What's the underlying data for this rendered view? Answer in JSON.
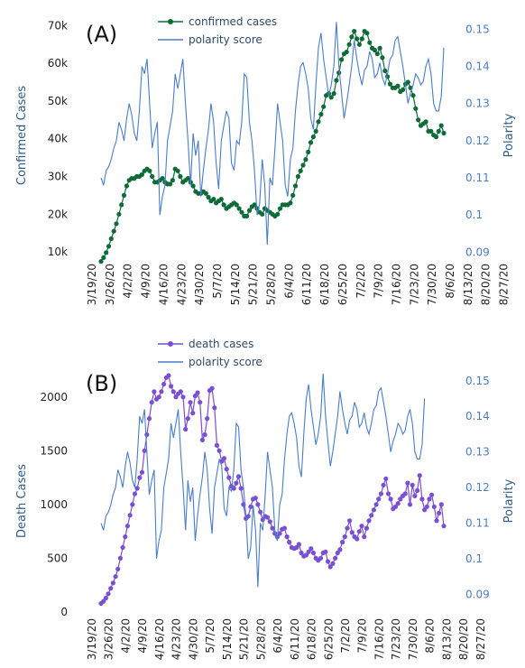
{
  "colors": {
    "confirmed": "#0d6b37",
    "death": "#7b4fd1",
    "polarity": "#4a7cc9",
    "axis_text": "#222222",
    "left_label": "#2e5c8a",
    "right_label": "#2e5c8a"
  },
  "chart_data": [
    {
      "type": "line",
      "panel_label": "(A)",
      "ylabel": "Confirmed Cases",
      "y2label": "Polarity",
      "ylim": [
        5000,
        72000
      ],
      "y2lim": [
        0.085,
        0.153
      ],
      "yticks": [
        10000,
        20000,
        30000,
        40000,
        50000,
        60000,
        70000
      ],
      "ytick_labels": [
        "10k",
        "20k",
        "30k",
        "40k",
        "50k",
        "60k",
        "70k"
      ],
      "y2ticks": [
        0.09,
        0.1,
        0.11,
        0.12,
        0.13,
        0.14,
        0.15
      ],
      "y2tick_labels": [
        "0.09",
        "0.1",
        "0.11",
        "0.12",
        "0.13",
        "0.14",
        "0.15"
      ],
      "xtick_labels": [
        "3/19/20",
        "3/26/20",
        "4/2/20",
        "4/9/20",
        "4/16/20",
        "4/23/20",
        "4/30/20",
        "5/7/20",
        "5/14/20",
        "5/21/20",
        "5/28/20",
        "6/4/20",
        "6/11/20",
        "6/18/20",
        "6/25/20",
        "7/2/20",
        "7/9/20",
        "7/16/20",
        "7/23/20",
        "7/30/20",
        "8/6/20",
        "8/13/20",
        "8/20/20",
        "8/27/20"
      ],
      "legend": "top-center",
      "series": [
        {
          "name": "confirmed cases",
          "marker": "circle",
          "start_date": "3/19/20",
          "values": [
            7500,
            8500,
            9800,
            11500,
            13500,
            15500,
            17500,
            20000,
            22500,
            25000,
            27500,
            29000,
            29500,
            29500,
            30000,
            30000,
            30500,
            31500,
            32000,
            31500,
            30000,
            28500,
            28500,
            29000,
            29500,
            28500,
            28000,
            28000,
            29000,
            32000,
            31500,
            30000,
            28500,
            29000,
            29500,
            28500,
            27500,
            26000,
            25500,
            25500,
            26000,
            25500,
            24500,
            23500,
            24000,
            23000,
            23500,
            24000,
            22500,
            21500,
            22000,
            22500,
            23000,
            22500,
            21500,
            20500,
            19500,
            19500,
            21000,
            22000,
            22500,
            21500,
            20500,
            20000,
            21500,
            21000,
            20500,
            20000,
            19500,
            20000,
            21500,
            22500,
            22500,
            22500,
            23000,
            25000,
            27500,
            30000,
            31500,
            33000,
            34500,
            36500,
            39000,
            40500,
            42000,
            44500,
            46500,
            48500,
            51500,
            52000,
            51000,
            52000,
            55500,
            57500,
            61000,
            62500,
            63000,
            65000,
            67000,
            68500,
            66500,
            65000,
            66500,
            68500,
            68000,
            65500,
            64000,
            63500,
            62500,
            64000,
            61500,
            58000,
            56500,
            54500,
            53500,
            53500,
            54000,
            52500,
            53000,
            54500,
            55000,
            53500,
            51500,
            48000,
            45000,
            43500,
            44000,
            44500,
            42000,
            42000,
            41000,
            40500,
            42000,
            43500,
            41500
          ]
        },
        {
          "name": "polarity score",
          "marker": "none",
          "start_date": "3/19/20",
          "values": [
            0.11,
            0.108,
            0.112,
            0.113,
            0.115,
            0.118,
            0.12,
            0.125,
            0.123,
            0.12,
            0.126,
            0.13,
            0.127,
            0.122,
            0.12,
            0.128,
            0.14,
            0.138,
            0.142,
            0.13,
            0.118,
            0.122,
            0.125,
            0.1,
            0.105,
            0.108,
            0.12,
            0.124,
            0.128,
            0.138,
            0.134,
            0.138,
            0.142,
            0.13,
            0.12,
            0.108,
            0.122,
            0.116,
            0.12,
            0.105,
            0.112,
            0.118,
            0.123,
            0.13,
            0.125,
            0.114,
            0.107,
            0.12,
            0.124,
            0.128,
            0.126,
            0.114,
            0.112,
            0.12,
            0.119,
            0.125,
            0.138,
            0.137,
            0.125,
            0.12,
            0.112,
            0.1,
            0.103,
            0.115,
            0.108,
            0.092,
            0.11,
            0.108,
            0.118,
            0.13,
            0.125,
            0.12,
            0.108,
            0.105,
            0.115,
            0.118,
            0.128,
            0.135,
            0.14,
            0.141,
            0.138,
            0.134,
            0.126,
            0.123,
            0.135,
            0.145,
            0.149,
            0.142,
            0.137,
            0.132,
            0.135,
            0.14,
            0.152,
            0.14,
            0.133,
            0.126,
            0.13,
            0.135,
            0.14,
            0.147,
            0.142,
            0.138,
            0.135,
            0.139,
            0.14,
            0.144,
            0.142,
            0.137,
            0.138,
            0.141,
            0.137,
            0.135,
            0.138,
            0.142,
            0.143,
            0.147,
            0.148,
            0.144,
            0.14,
            0.135,
            0.13,
            0.133,
            0.135,
            0.138,
            0.137,
            0.135,
            0.136,
            0.14,
            0.142,
            0.138,
            0.13,
            0.128,
            0.128,
            0.132,
            0.145
          ]
        }
      ]
    },
    {
      "type": "line",
      "panel_label": "(B)",
      "ylabel": "Death Cases",
      "y2label": "Polarity",
      "ylim": [
        0,
        2250
      ],
      "y2lim": [
        0.085,
        0.153
      ],
      "yticks": [
        0,
        500,
        1000,
        1500,
        2000
      ],
      "ytick_labels": [
        "0",
        "500",
        "1000",
        "1500",
        "2000"
      ],
      "y2ticks": [
        0.09,
        0.1,
        0.11,
        0.12,
        0.13,
        0.14,
        0.15
      ],
      "y2tick_labels": [
        "0.09",
        "0.1",
        "0.11",
        "0.12",
        "0.13",
        "0.14",
        "0.15"
      ],
      "xtick_labels": [
        "3/19/20",
        "3/26/20",
        "4/2/20",
        "4/9/20",
        "4/16/20",
        "4/23/20",
        "4/30/20",
        "5/7/20",
        "5/14/20",
        "5/21/20",
        "5/28/20",
        "6/4/20",
        "6/11/20",
        "6/18/20",
        "6/25/20",
        "7/2/20",
        "7/9/20",
        "7/16/20",
        "7/23/20",
        "7/30/20",
        "8/6/20",
        "8/13/20",
        "8/20/20",
        "8/27/20"
      ],
      "legend": "top-center",
      "series": [
        {
          "name": "death cases",
          "marker": "circle",
          "start_date": "3/19/20",
          "values": [
            80,
            100,
            130,
            170,
            220,
            270,
            330,
            400,
            500,
            600,
            700,
            800,
            900,
            1000,
            1100,
            1150,
            1250,
            1300,
            1500,
            1650,
            1800,
            1950,
            2050,
            1980,
            2000,
            2050,
            2120,
            2180,
            2200,
            2100,
            2050,
            2000,
            2030,
            2050,
            2000,
            1700,
            1800,
            1950,
            1850,
            2010,
            2040,
            1950,
            1600,
            1650,
            1800,
            2060,
            2080,
            1900,
            1550,
            1500,
            1400,
            1430,
            1330,
            1250,
            1170,
            1150,
            1200,
            1260,
            1150,
            1000,
            870,
            890,
            980,
            1050,
            1060,
            1000,
            930,
            860,
            890,
            880,
            840,
            780,
            730,
            700,
            730,
            770,
            780,
            700,
            650,
            600,
            590,
            600,
            630,
            550,
            520,
            530,
            560,
            590,
            550,
            500,
            480,
            500,
            550,
            560,
            470,
            420,
            450,
            500,
            550,
            580,
            650,
            700,
            780,
            850,
            740,
            700,
            680,
            750,
            800,
            700,
            780,
            850,
            900,
            950,
            1000,
            1050,
            1100,
            1180,
            1240,
            1100,
            1050,
            960,
            980,
            1010,
            1050,
            1080,
            1100,
            1200,
            1000,
            1180,
            1080,
            1130,
            1270,
            1050,
            950,
            980,
            1050,
            1090,
            980,
            850,
            920,
            1000,
            800
          ]
        },
        {
          "name": "polarity score",
          "marker": "none",
          "start_date": "3/19/20",
          "values": [
            0.11,
            0.108,
            0.112,
            0.113,
            0.115,
            0.118,
            0.12,
            0.125,
            0.123,
            0.12,
            0.126,
            0.13,
            0.127,
            0.122,
            0.12,
            0.128,
            0.14,
            0.138,
            0.142,
            0.13,
            0.118,
            0.122,
            0.125,
            0.1,
            0.105,
            0.108,
            0.12,
            0.124,
            0.128,
            0.138,
            0.134,
            0.138,
            0.142,
            0.13,
            0.12,
            0.108,
            0.122,
            0.116,
            0.12,
            0.105,
            0.112,
            0.118,
            0.123,
            0.13,
            0.125,
            0.114,
            0.107,
            0.12,
            0.124,
            0.128,
            0.126,
            0.114,
            0.112,
            0.12,
            0.119,
            0.125,
            0.138,
            0.137,
            0.125,
            0.12,
            0.112,
            0.1,
            0.103,
            0.115,
            0.108,
            0.092,
            0.11,
            0.108,
            0.118,
            0.13,
            0.125,
            0.12,
            0.108,
            0.105,
            0.115,
            0.118,
            0.128,
            0.135,
            0.14,
            0.141,
            0.138,
            0.134,
            0.126,
            0.123,
            0.135,
            0.145,
            0.149,
            0.142,
            0.137,
            0.132,
            0.135,
            0.14,
            0.152,
            0.14,
            0.133,
            0.126,
            0.13,
            0.135,
            0.14,
            0.147,
            0.142,
            0.138,
            0.135,
            0.139,
            0.14,
            0.144,
            0.142,
            0.137,
            0.138,
            0.141,
            0.137,
            0.135,
            0.138,
            0.142,
            0.143,
            0.147,
            0.148,
            0.144,
            0.14,
            0.135,
            0.13,
            0.133,
            0.135,
            0.138,
            0.137,
            0.135,
            0.136,
            0.14,
            0.142,
            0.138,
            0.13,
            0.128,
            0.128,
            0.132,
            0.145
          ]
        }
      ]
    }
  ]
}
